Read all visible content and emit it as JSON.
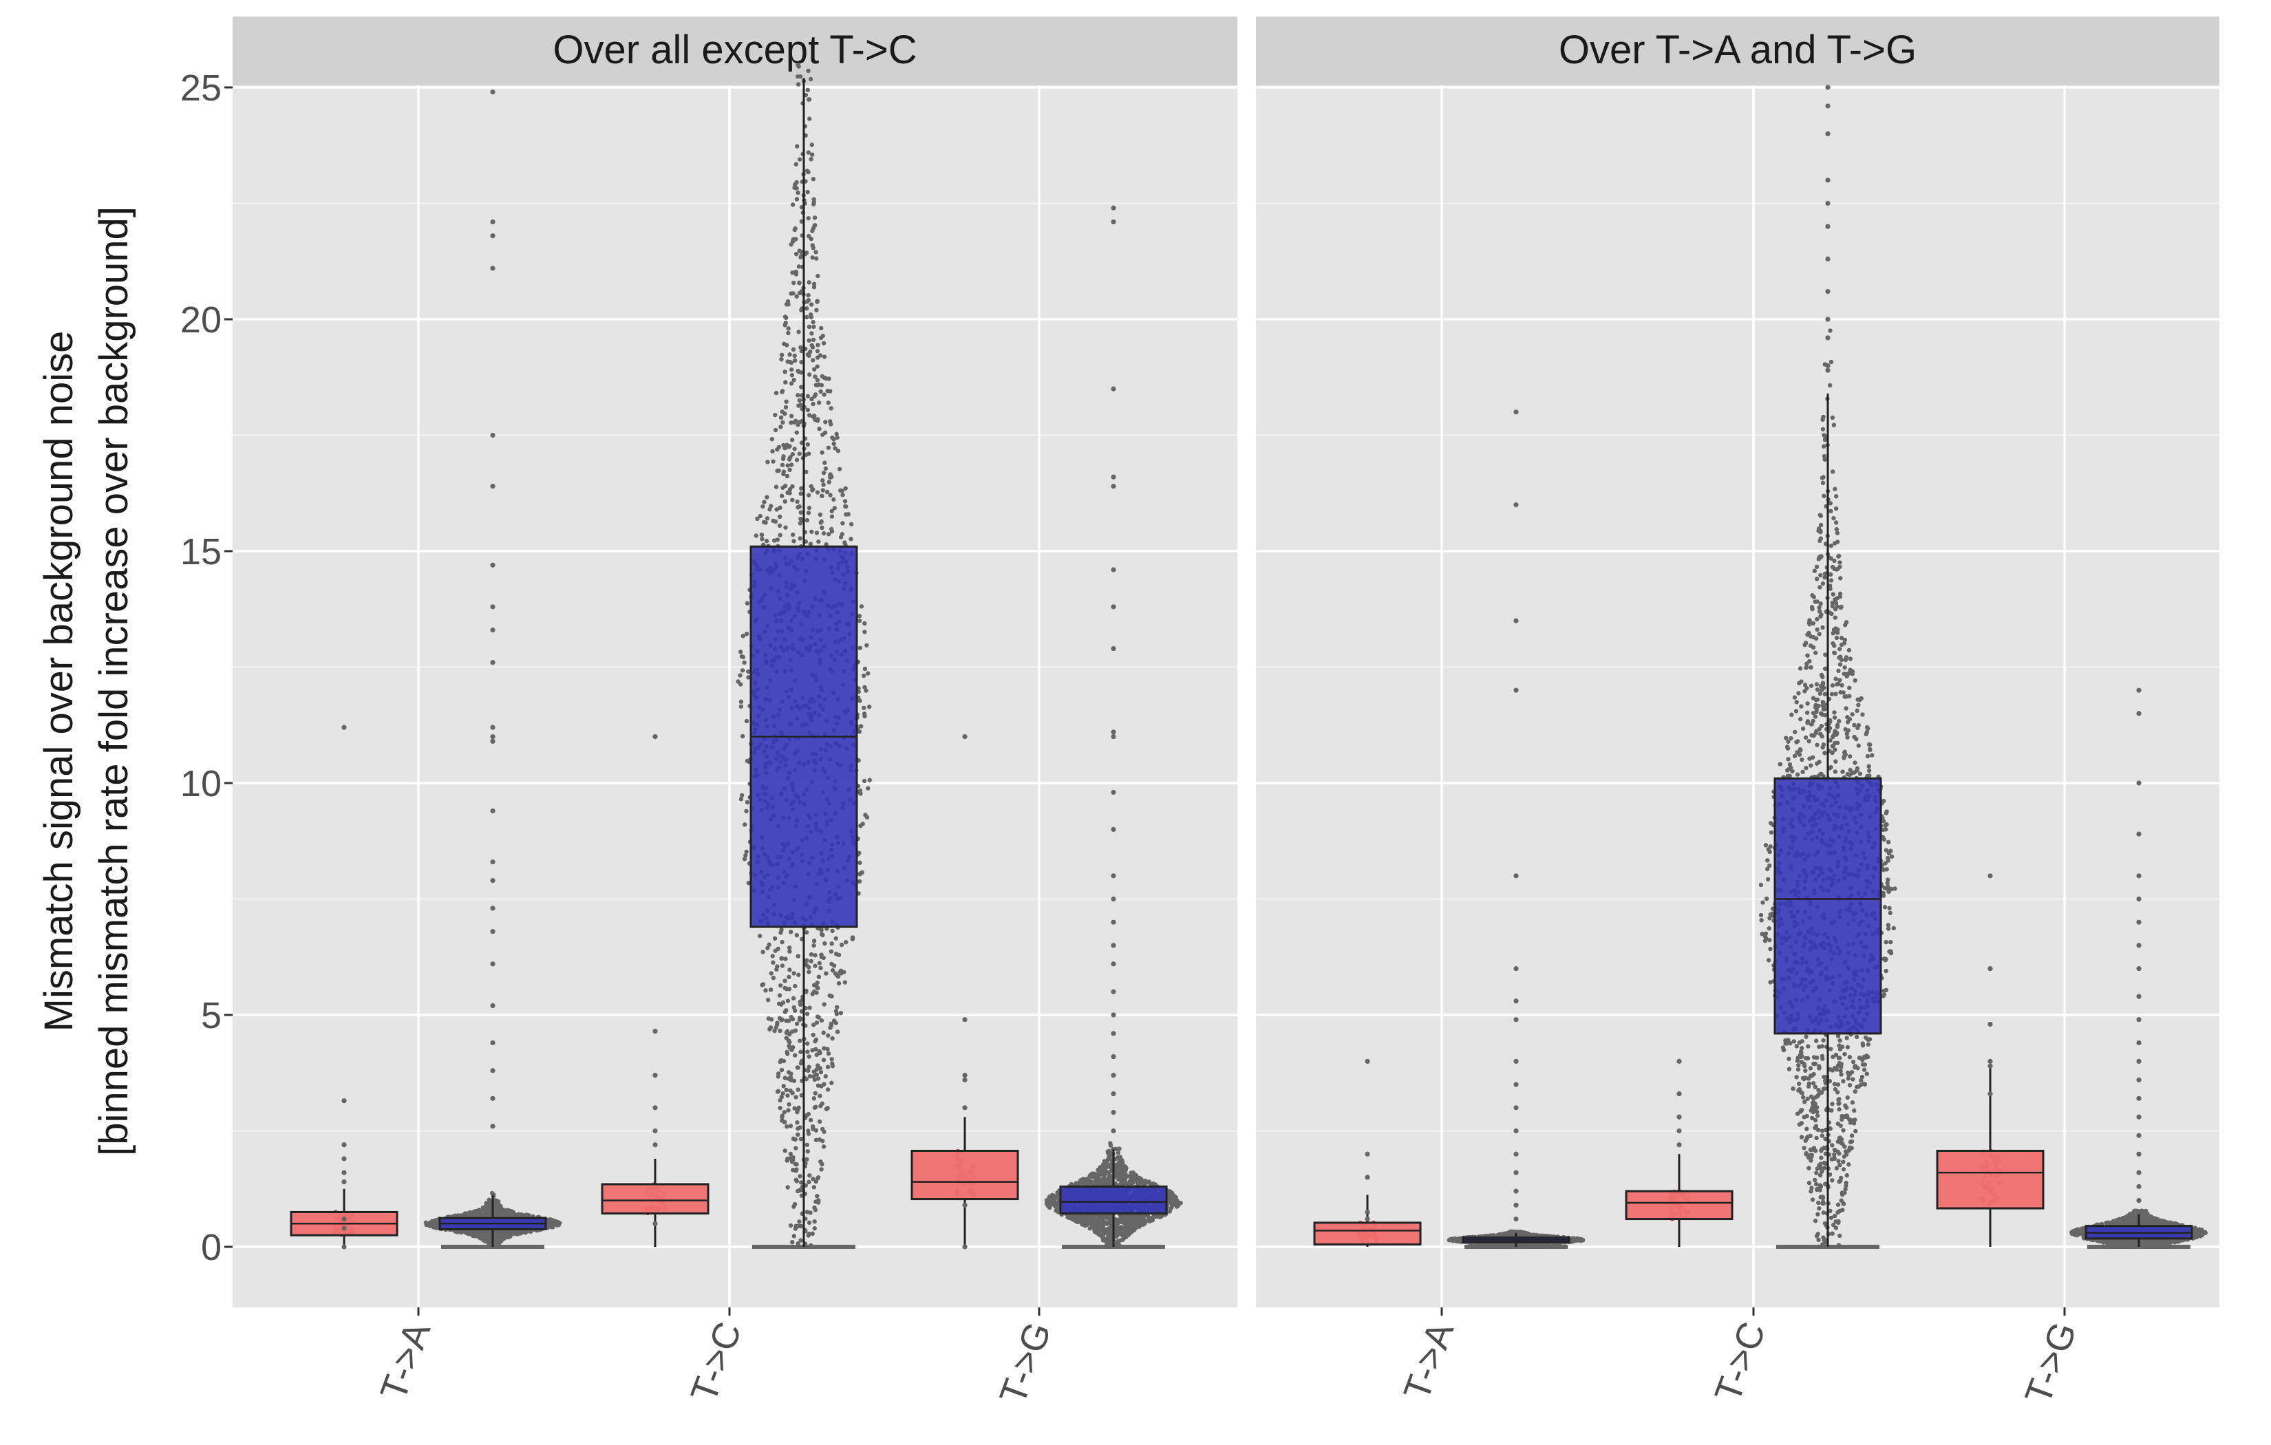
{
  "chart_data": {
    "type": "boxplot",
    "ylabel_lines": [
      "Mismatch signal over background noise",
      "[binned mismatch rate fold increase over background]"
    ],
    "ylim": [
      -1.2,
      25.2
    ],
    "y_ticks": [
      0,
      5,
      10,
      15,
      20,
      25
    ],
    "categories": [
      "T->A",
      "T->C",
      "T->G"
    ],
    "grid": true,
    "colors": {
      "group1": "#f07070",
      "group2": "#3636b8",
      "jitter": "#666666",
      "panel_bg": "#e5e5e5",
      "strip_bg": "#d1d1d1"
    },
    "panels": [
      {
        "title": "Over all except T->C",
        "boxes": [
          {
            "category": "T->A",
            "group": 1,
            "whisker_low": 0.0,
            "q1": 0.25,
            "median": 0.5,
            "q3": 0.75,
            "whisker_high": 1.25,
            "outliers": [
              11.2,
              3.15,
              2.2,
              1.9,
              1.6,
              1.4,
              0.6,
              0.4,
              0.0
            ]
          },
          {
            "category": "T->A",
            "group": 2,
            "whisker_low": 0.0,
            "q1": 0.38,
            "median": 0.5,
            "q3": 0.62,
            "whisker_high": 1.12,
            "outliers": [
              24.9,
              22.1,
              21.8,
              21.1,
              17.5,
              16.4,
              14.7,
              13.8,
              13.3,
              12.6,
              11.2,
              11.0,
              10.9,
              9.4,
              8.3,
              7.9,
              7.3,
              6.8,
              6.1,
              5.2,
              4.4,
              3.8,
              3.2,
              2.6
            ]
          },
          {
            "category": "T->C",
            "group": 1,
            "whisker_low": 0.0,
            "q1": 0.72,
            "median": 1.0,
            "q3": 1.35,
            "whisker_high": 1.9,
            "outliers": [
              11.0,
              4.65,
              3.7,
              3.0,
              2.5,
              2.2,
              0.5
            ]
          },
          {
            "category": "T->C",
            "group": 2,
            "whisker_low": 0.0,
            "q1": 6.9,
            "median": 11.0,
            "q3": 15.1,
            "whisker_high": 25.2,
            "outliers": []
          },
          {
            "category": "T->G",
            "group": 1,
            "whisker_low": 0.0,
            "q1": 1.03,
            "median": 1.4,
            "q3": 2.07,
            "whisker_high": 2.8,
            "outliers": [
              11.0,
              4.9,
              3.7,
              3.6,
              3.0,
              0.9,
              0.0
            ]
          },
          {
            "category": "T->G",
            "group": 2,
            "whisker_low": 0.0,
            "q1": 0.72,
            "median": 0.97,
            "q3": 1.3,
            "whisker_high": 2.1,
            "outliers": [
              22.4,
              22.1,
              18.5,
              16.6,
              16.4,
              14.6,
              13.8,
              12.9,
              11.1,
              11.0,
              9.8,
              9.0,
              8.0,
              7.5,
              7.0,
              6.5,
              6.1,
              5.5,
              5.0,
              4.6,
              4.1,
              3.7,
              3.3,
              2.9,
              2.5
            ]
          }
        ]
      },
      {
        "title": "Over T->A and T->G",
        "boxes": [
          {
            "category": "T->A",
            "group": 1,
            "whisker_low": 0.0,
            "q1": 0.05,
            "median": 0.35,
            "q3": 0.52,
            "whisker_high": 1.12,
            "outliers": [
              4.0,
              2.0,
              1.5,
              0.75,
              0.6
            ]
          },
          {
            "category": "T->A",
            "group": 2,
            "whisker_low": 0.0,
            "q1": 0.1,
            "median": 0.15,
            "q3": 0.2,
            "whisker_high": 0.3,
            "outliers": [
              18.0,
              16.0,
              13.5,
              12.0,
              8.0,
              6.0,
              5.3,
              4.9,
              4.0,
              3.5,
              3.0,
              2.5,
              2.0,
              1.6,
              1.2,
              0.9,
              0.6
            ]
          },
          {
            "category": "T->C",
            "group": 1,
            "whisker_low": 0.0,
            "q1": 0.6,
            "median": 0.95,
            "q3": 1.2,
            "whisker_high": 2.0,
            "outliers": [
              4.0,
              3.3,
              2.8,
              2.5,
              2.2
            ]
          },
          {
            "category": "T->C",
            "group": 2,
            "whisker_low": 0.0,
            "q1": 4.6,
            "median": 7.5,
            "q3": 10.1,
            "whisker_high": 18.4,
            "outliers": [
              25.0,
              24.6,
              24.0,
              23.0,
              22.5,
              22.0,
              21.3,
              20.6,
              20.0,
              19.6,
              19.0,
              18.9
            ]
          },
          {
            "category": "T->G",
            "group": 1,
            "whisker_low": 0.0,
            "q1": 0.83,
            "median": 1.6,
            "q3": 2.07,
            "whisker_high": 3.85,
            "outliers": [
              8.0,
              6.0,
              4.8,
              4.0,
              3.9,
              3.3
            ]
          },
          {
            "category": "T->G",
            "group": 2,
            "whisker_low": 0.0,
            "q1": 0.18,
            "median": 0.3,
            "q3": 0.45,
            "whisker_high": 0.7,
            "outliers": [
              12.0,
              11.5,
              10.0,
              8.9,
              8.0,
              7.5,
              7.0,
              6.5,
              6.0,
              5.4,
              4.9,
              4.4,
              4.0,
              3.6,
              3.2,
              2.8,
              2.4,
              2.0,
              1.6,
              1.3,
              1.0
            ]
          }
        ]
      }
    ]
  }
}
